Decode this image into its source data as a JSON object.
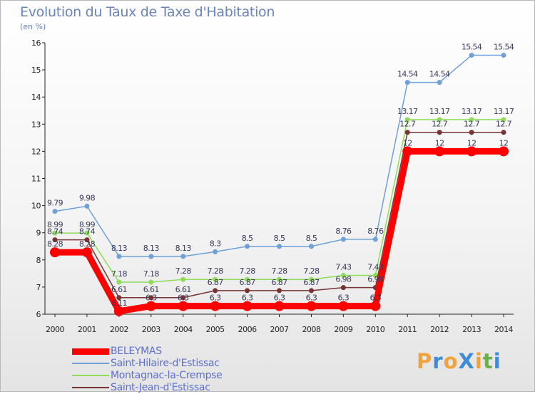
{
  "title": "Evolution du Taux de Taxe d'Habitation",
  "subtitle": "(en %)",
  "brand": "ProXiti",
  "colors": {
    "BELEYMAS": "#ff0000",
    "Saint-Hilaire-d'Estissac": "#6fa1d6",
    "Montagnac-la-Crempse": "#8fdc5b",
    "Saint-Jean-d'Estissac": "#773333"
  },
  "chart_data": {
    "type": "line",
    "x": [
      "2000",
      "2001",
      "2002",
      "2003",
      "2004",
      "2005",
      "2006",
      "2007",
      "2008",
      "2009",
      "2010",
      "2011",
      "2012",
      "2013",
      "2014"
    ],
    "yticks": [
      "6",
      "7",
      "8",
      "9",
      "10",
      "11",
      "12",
      "13",
      "14",
      "15",
      "16"
    ],
    "ylim": [
      6,
      16
    ],
    "grid": false,
    "legend": "bottom-left",
    "series": [
      {
        "name": "BELEYMAS",
        "values": [
          8.28,
          8.28,
          6.11,
          6.3,
          6.3,
          6.3,
          6.3,
          6.3,
          6.3,
          6.3,
          6.3,
          12,
          12,
          12,
          12
        ],
        "labels": [
          "8.28",
          "8.28",
          "6.11",
          "6.3",
          "6.3",
          "6.3",
          "6.3",
          "6.3",
          "6.3",
          "6.3",
          "6.3",
          "12",
          "12",
          "12",
          "12"
        ]
      },
      {
        "name": "Saint-Hilaire-d'Estissac",
        "values": [
          9.79,
          9.98,
          8.13,
          8.13,
          8.13,
          8.3,
          8.5,
          8.5,
          8.5,
          8.76,
          8.76,
          14.54,
          14.54,
          15.54,
          15.54
        ],
        "labels": [
          "9.79",
          "9.98",
          "8.13",
          "8.13",
          "8.13",
          "8.3",
          "8.5",
          "8.5",
          "8.5",
          "8.76",
          "8.76",
          "14.54",
          "14.54",
          "15.54",
          "15.54"
        ]
      },
      {
        "name": "Montagnac-la-Crempse",
        "values": [
          8.99,
          8.99,
          7.18,
          7.18,
          7.28,
          7.28,
          7.28,
          7.28,
          7.28,
          7.43,
          7.43,
          13.17,
          13.17,
          13.17,
          13.17
        ],
        "labels": [
          "8.99",
          "8.99",
          "7.18",
          "7.18",
          "7.28",
          "7.28",
          "7.28",
          "7.28",
          "7.28",
          "7.43",
          "7.43",
          "13.17",
          "13.17",
          "13.17",
          "13.17"
        ]
      },
      {
        "name": "Saint-Jean-d'Estissac",
        "values": [
          8.74,
          8.74,
          6.61,
          6.61,
          6.61,
          6.87,
          6.87,
          6.87,
          6.87,
          6.98,
          6.98,
          12.7,
          12.7,
          12.7,
          12.7
        ],
        "labels": [
          "8.74",
          "8.74",
          "6.61",
          "6.61",
          "6.61",
          "6.87",
          "6.87",
          "6.87",
          "6.87",
          "6.98",
          "6.98",
          "12.7",
          "12.7",
          "12.7",
          "12.7"
        ]
      }
    ]
  }
}
